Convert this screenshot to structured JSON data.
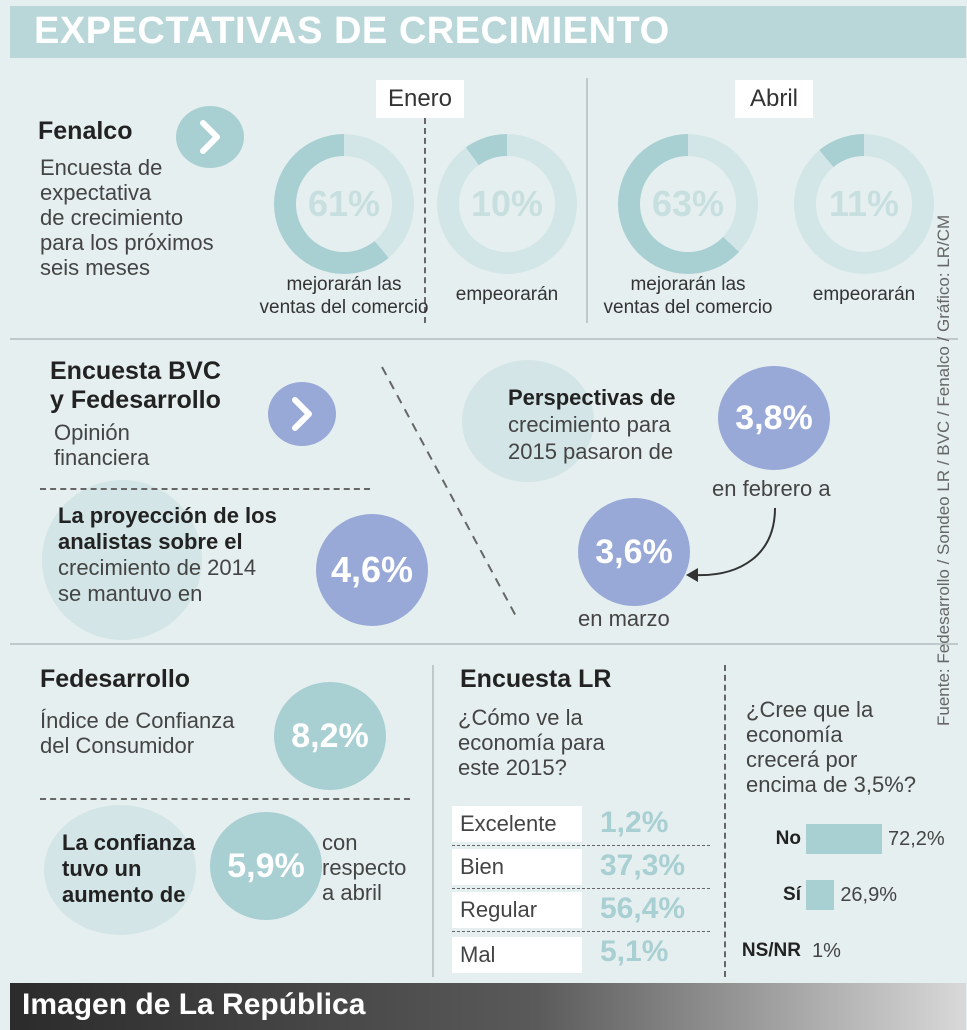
{
  "title": "EXPECTATIVAS DE CRECIMIENTO",
  "fenalco": {
    "heading": "Fenalco",
    "description": "Encuesta de expectativa de crecimiento para los próximos seis meses",
    "desc_lines": [
      "Encuesta de",
      "expectativa",
      "de crecimiento",
      "para los próximos",
      "seis meses"
    ],
    "months": [
      {
        "label": "Enero",
        "donuts": [
          {
            "value": "61%",
            "fraction": 0.61,
            "caption_lines": [
              "mejorarán las",
              "ventas del comercio"
            ]
          },
          {
            "value": "10%",
            "fraction": 0.1,
            "caption_lines": [
              "empeorarán"
            ]
          }
        ]
      },
      {
        "label": "Abril",
        "donuts": [
          {
            "value": "63%",
            "fraction": 0.63,
            "caption_lines": [
              "mejorarán las",
              "ventas del comercio"
            ]
          },
          {
            "value": "11%",
            "fraction": 0.11,
            "caption_lines": [
              "empeorarán"
            ]
          }
        ]
      }
    ]
  },
  "bvc": {
    "heading_lines": [
      "Encuesta BVC",
      "y Fedesarrollo"
    ],
    "subtitle_lines": [
      "Opinión",
      "financiera"
    ],
    "projection": {
      "text_bold_lines": [
        "La proyección de los",
        "analistas sobre el"
      ],
      "text_lines": [
        "crecimiento de 2014",
        "se mantuvo en"
      ],
      "value": "4,6%"
    },
    "perspectives": {
      "text_bold": "Perspectivas de",
      "text_lines": [
        "crecimiento para",
        "2015 pasaron de"
      ],
      "value_feb": "3,8%",
      "label_feb": "en febrero a",
      "value_mar": "3,6%",
      "label_mar": "en marzo"
    }
  },
  "fedesarrollo": {
    "heading": "Fedesarrollo",
    "index_lines": [
      "Índice de Confianza",
      "del Consumidor"
    ],
    "index_value": "8,2%",
    "increase_lines": [
      "La confianza",
      "tuvo un",
      "aumento de"
    ],
    "increase_value": "5,9%",
    "increase_suffix_lines": [
      "con",
      "respecto",
      "a abril"
    ]
  },
  "encuesta_lr": {
    "heading": "Encuesta LR",
    "question_lines": [
      "¿Cómo ve la",
      "economía para",
      "este 2015?"
    ],
    "rows": [
      {
        "label": "Excelente",
        "value": "1,2%"
      },
      {
        "label": "Bien",
        "value": "37,3%"
      },
      {
        "label": "Regular",
        "value": "56,4%"
      },
      {
        "label": "Mal",
        "value": "5,1%"
      }
    ]
  },
  "growth_question": {
    "question_lines": [
      "¿Cree que la",
      "economía",
      "crecerá por",
      "encima de 3,5%?"
    ],
    "bars": [
      {
        "label": "No",
        "value": "72,2%",
        "fraction": 0.722
      },
      {
        "label": "Sí",
        "value": "26,9%",
        "fraction": 0.269
      },
      {
        "label": "NS/NR",
        "value": "1%",
        "fraction": 0.01
      }
    ]
  },
  "source": "Fuente: Fedesarrollo / Sondeo LR / BVC / Fenalco / Gráfico: LR/CM",
  "footer": "Imagen de La República",
  "colors": {
    "teal": "#a8cfd2",
    "blue": "#98a9d7",
    "background": "#e6eff0",
    "title_bar": "#b9d7d9"
  }
}
